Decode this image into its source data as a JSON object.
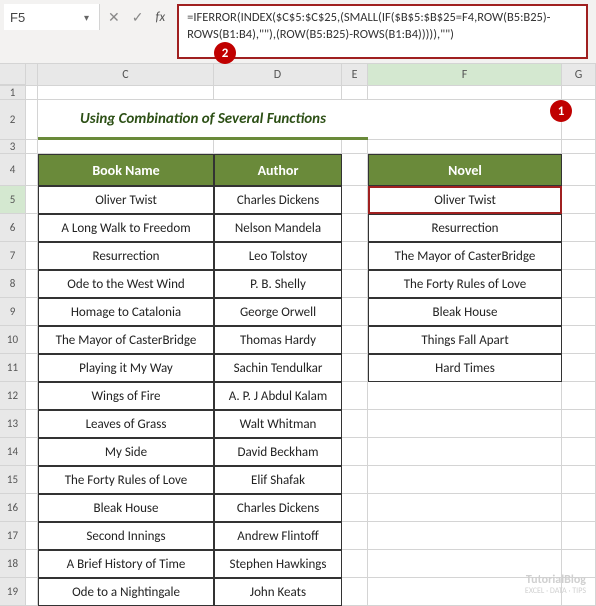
{
  "namebox": {
    "value": "F5"
  },
  "formula": {
    "text": "=IFERROR(INDEX($C$5:$C$25,(SMALL(IF($B$5:$B$25=F4,ROW(B5:B25)-ROWS(B1:B4),\"\"),(ROW(B5:B25)-ROWS(B1:B4))))),\"\")"
  },
  "badges": {
    "one": "1",
    "two": "2"
  },
  "title": "Using Combination of Several Functions",
  "columns": {
    "c": "C",
    "d": "D",
    "e": "E",
    "f": "F",
    "g": "G"
  },
  "headers": {
    "book": "Book Name",
    "author": "Author",
    "novel": "Novel"
  },
  "rows": [
    {
      "n": "1"
    },
    {
      "n": "2"
    },
    {
      "n": "3"
    },
    {
      "n": "4"
    },
    {
      "n": "5",
      "book": "Oliver Twist",
      "author": "Charles Dickens",
      "novel": "Oliver Twist"
    },
    {
      "n": "6",
      "book": "A Long Walk to Freedom",
      "author": "Nelson Mandela",
      "novel": "Resurrection"
    },
    {
      "n": "7",
      "book": "Resurrection",
      "author": "Leo Tolstoy",
      "novel": "The Mayor of CasterBridge"
    },
    {
      "n": "8",
      "book": "Ode to the West Wind",
      "author": "P. B. Shelly",
      "novel": "The Forty Rules of Love"
    },
    {
      "n": "9",
      "book": "Homage to Catalonia",
      "author": "George Orwell",
      "novel": "Bleak House"
    },
    {
      "n": "10",
      "book": "The Mayor of CasterBridge",
      "author": "Thomas Hardy",
      "novel": "Things Fall Apart"
    },
    {
      "n": "11",
      "book": "Playing it My Way",
      "author": "Sachin Tendulkar",
      "novel": "Hard Times"
    },
    {
      "n": "12",
      "book": "Wings of Fire",
      "author": "A. P. J Abdul Kalam",
      "novel": ""
    },
    {
      "n": "13",
      "book": "Leaves of Grass",
      "author": "Walt Whitman",
      "novel": ""
    },
    {
      "n": "14",
      "book": "My Side",
      "author": "David Beckham",
      "novel": ""
    },
    {
      "n": "15",
      "book": "The Forty Rules of Love",
      "author": "Elif Shafak",
      "novel": ""
    },
    {
      "n": "16",
      "book": "Bleak House",
      "author": "Charles Dickens",
      "novel": ""
    },
    {
      "n": "17",
      "book": "Second Innings",
      "author": "Andrew Flintoff",
      "novel": ""
    },
    {
      "n": "18",
      "book": "A Brief History of Time",
      "author": "Stephen Hawkings",
      "novel": ""
    },
    {
      "n": "19",
      "book": "Ode to a Nightingale",
      "author": "John Keats",
      "novel": ""
    }
  ],
  "watermark": {
    "brand": "TutorialBlog",
    "tag": "EXCEL · DATA · TIPS"
  },
  "fx": {
    "cancel": "✕",
    "confirm": "✓",
    "label": "fx"
  }
}
